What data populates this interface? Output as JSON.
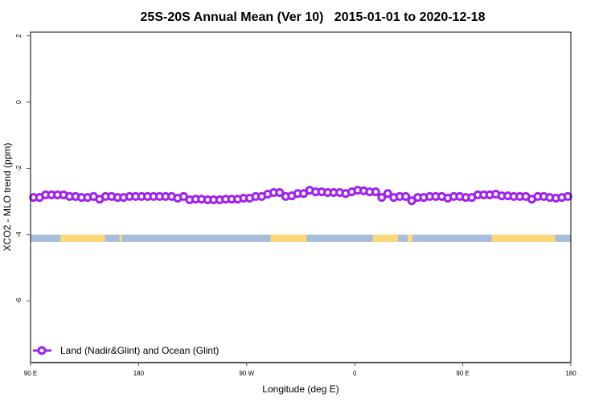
{
  "chart_data": {
    "type": "line",
    "title": "25S-20S Annual Mean (Ver 10)   2015-01-01 to 2020-12-18",
    "xlabel": "Longitude (deg E)",
    "ylabel": "XCO2 - MLO trend (ppm)",
    "xlim": [
      90,
      540
    ],
    "ylim": [
      -7.9,
      2.1
    ],
    "xticks": [
      {
        "value": 90,
        "label": "90 E"
      },
      {
        "value": 180,
        "label": "180"
      },
      {
        "value": 270,
        "label": "90 W"
      },
      {
        "value": 360,
        "label": "0"
      },
      {
        "value": 450,
        "label": "90 E"
      },
      {
        "value": 540,
        "label": "180"
      }
    ],
    "yticks": [
      {
        "value": 2,
        "label": "2"
      },
      {
        "value": 0,
        "label": "0"
      },
      {
        "value": -2,
        "label": "-2"
      },
      {
        "value": -4,
        "label": "-4"
      },
      {
        "value": -6,
        "label": "-6"
      }
    ],
    "grid": false,
    "legend_placement": "bottom-left",
    "series": [
      {
        "name": "Land (Nadir&Glint) and Ocean (Glint)",
        "color": "#A020F0",
        "x_start": 92.5,
        "x_step": 5,
        "values": [
          -2.88,
          -2.88,
          -2.8,
          -2.8,
          -2.8,
          -2.8,
          -2.85,
          -2.85,
          -2.88,
          -2.88,
          -2.85,
          -2.93,
          -2.85,
          -2.85,
          -2.88,
          -2.88,
          -2.85,
          -2.85,
          -2.85,
          -2.85,
          -2.85,
          -2.85,
          -2.85,
          -2.85,
          -2.9,
          -2.85,
          -2.95,
          -2.93,
          -2.93,
          -2.95,
          -2.95,
          -2.95,
          -2.93,
          -2.93,
          -2.93,
          -2.9,
          -2.9,
          -2.85,
          -2.85,
          -2.78,
          -2.73,
          -2.73,
          -2.85,
          -2.83,
          -2.76,
          -2.76,
          -2.66,
          -2.71,
          -2.71,
          -2.73,
          -2.73,
          -2.73,
          -2.76,
          -2.71,
          -2.66,
          -2.68,
          -2.71,
          -2.71,
          -2.88,
          -2.76,
          -2.88,
          -2.85,
          -2.85,
          -2.98,
          -2.88,
          -2.88,
          -2.85,
          -2.85,
          -2.85,
          -2.9,
          -2.85,
          -2.85,
          -2.88,
          -2.88,
          -2.8,
          -2.8,
          -2.8,
          -2.78,
          -2.83,
          -2.83,
          -2.85,
          -2.85,
          -2.85,
          -2.93,
          -2.85,
          -2.85,
          -2.88,
          -2.9,
          -2.88,
          -2.85
        ]
      }
    ],
    "surface_strip": {
      "y_range": [
        -4.22,
        -4.0
      ],
      "ocean_color": "#A6BDDB",
      "land_color": "#FFD87A",
      "land_lon_ranges": [
        [
          115,
          152
        ],
        [
          164,
          166
        ],
        [
          290,
          320
        ],
        [
          375,
          396
        ],
        [
          404,
          408
        ],
        [
          474,
          527
        ]
      ]
    }
  }
}
